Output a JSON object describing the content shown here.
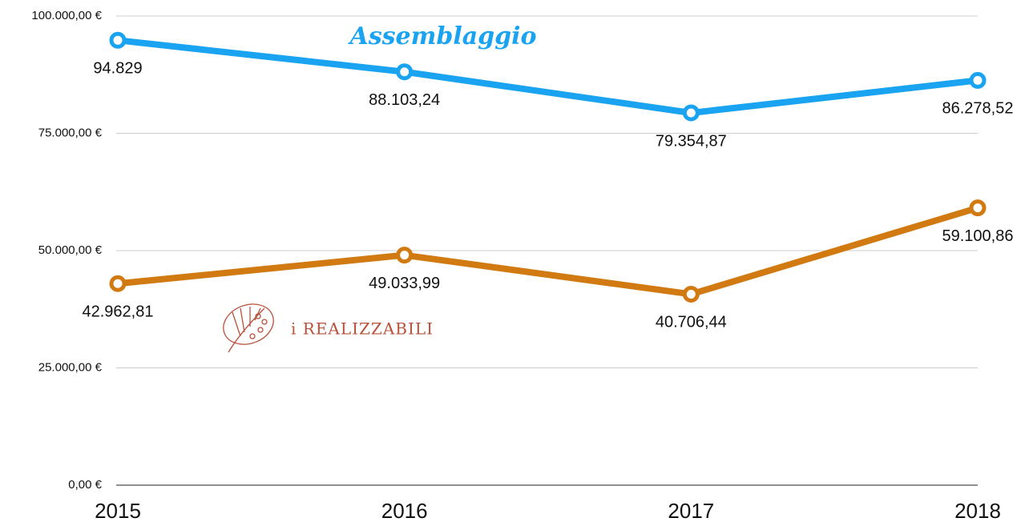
{
  "chart_data": {
    "type": "line",
    "categories": [
      "2015",
      "2016",
      "2017",
      "2018"
    ],
    "series": [
      {
        "name": "Assemblaggio",
        "color": "#1aa3f0",
        "values": [
          94829,
          88103.24,
          79354.87,
          86278.52
        ],
        "value_labels": [
          "94.829",
          "88.103,24",
          "79.354,87",
          "86.278,52"
        ]
      },
      {
        "name": "i REALIZZABILI",
        "color": "#d17a12",
        "values": [
          42962.81,
          49033.99,
          40706.44,
          59100.86
        ],
        "value_labels": [
          "42.962,81",
          "49.033,99",
          "40.706,44",
          "59.100,86"
        ]
      }
    ],
    "ylim": [
      0,
      100000
    ],
    "yticks": [
      {
        "value": 0,
        "label": "0,00 €"
      },
      {
        "value": 25000,
        "label": "25.000,00 €"
      },
      {
        "value": 50000,
        "label": "50.000,00 €"
      },
      {
        "value": 75000,
        "label": "75.000,00 €"
      },
      {
        "value": 100000,
        "label": "100.000,00 €"
      }
    ],
    "grid": true
  }
}
